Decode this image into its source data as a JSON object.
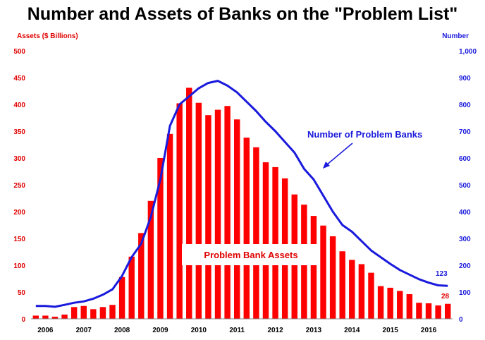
{
  "chart_data": {
    "type": "bar",
    "title": "Number and Assets of Banks on the \"Problem List\"",
    "ylabel": "Assets ($ Billions)",
    "ylabel_right": "Number",
    "ylim": [
      0,
      500
    ],
    "ylim_right": [
      0,
      1000
    ],
    "yticks": [
      "0",
      "50",
      "100",
      "150",
      "200",
      "250",
      "300",
      "350",
      "400",
      "450",
      "500"
    ],
    "yticks_right": [
      "0",
      "100",
      "200",
      "300",
      "400",
      "500",
      "600",
      "700",
      "800",
      "900",
      "1,000"
    ],
    "xticks": [
      "2006",
      "2007",
      "2008",
      "2009",
      "2010",
      "2011",
      "2012",
      "2013",
      "2014",
      "2015",
      "2016"
    ],
    "grid": false,
    "series": [
      {
        "name": "Problem Bank Assets",
        "type": "bar",
        "axis": "left",
        "color": "#ff0000",
        "values": [
          6,
          6,
          4,
          8,
          22,
          24,
          18,
          22,
          26,
          78,
          116,
          160,
          220,
          300,
          345,
          402,
          431,
          403,
          380,
          390,
          397,
          372,
          338,
          320,
          292,
          283,
          262,
          232,
          213,
          192,
          174,
          154,
          126,
          110,
          102,
          86,
          61,
          58,
          52,
          46,
          30,
          29,
          25,
          28
        ]
      },
      {
        "name": "Number of Problem Banks",
        "type": "line",
        "axis": "right",
        "color": "#1a1adc",
        "values": [
          48,
          48,
          45,
          52,
          60,
          65,
          75,
          90,
          110,
          160,
          230,
          280,
          380,
          520,
          720,
          800,
          830,
          860,
          880,
          888,
          870,
          845,
          810,
          775,
          735,
          700,
          660,
          620,
          560,
          520,
          460,
          400,
          350,
          325,
          290,
          255,
          230,
          205,
          182,
          165,
          148,
          135,
          125,
          123
        ]
      }
    ],
    "annotations": {
      "line_label": "Number of Problem Banks",
      "bar_label": "Problem Bank Assets",
      "line_end_value": "123",
      "bar_end_value": "28"
    }
  }
}
